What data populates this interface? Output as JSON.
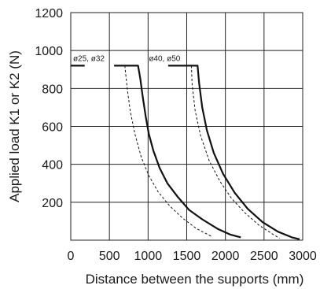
{
  "chart_data": {
    "type": "line",
    "xlabel": "Distance between the supports (mm)",
    "ylabel": "Applied load K1 or K2  (N)",
    "xlim": [
      0,
      3000
    ],
    "ylim": [
      0,
      1200
    ],
    "x_ticks": [
      0,
      500,
      1000,
      1500,
      2000,
      2500,
      3000
    ],
    "y_ticks": [
      200,
      400,
      600,
      800,
      1000,
      1200
    ],
    "x_tick_labels": [
      "0",
      "500",
      "1000",
      "1500",
      "2000",
      "2500",
      "3000"
    ],
    "y_tick_labels": [
      "200",
      "400",
      "600",
      "800",
      "1000",
      "1200"
    ],
    "grid": true,
    "annotations": [
      {
        "text": "ø25, ø32",
        "x": 30,
        "y": 945
      },
      {
        "text": "ø40, ø50",
        "x": 1010,
        "y": 945
      }
    ],
    "series": [
      {
        "style": "solid",
        "width": 2.2,
        "points": [
          [
            0,
            920
          ],
          [
            180,
            920
          ]
        ]
      },
      {
        "style": "solid",
        "width": 2.2,
        "points": [
          [
            560,
            920
          ],
          [
            870,
            920
          ],
          [
            900,
            850
          ],
          [
            930,
            760
          ],
          [
            970,
            650
          ],
          [
            1010,
            560
          ],
          [
            1070,
            470
          ],
          [
            1150,
            380
          ],
          [
            1250,
            300
          ],
          [
            1380,
            230
          ],
          [
            1530,
            160
          ],
          [
            1700,
            110
          ],
          [
            1900,
            60
          ],
          [
            2060,
            30
          ],
          [
            2200,
            15
          ]
        ]
      },
      {
        "style": "dashed",
        "width": 1,
        "points": [
          [
            700,
            920
          ],
          [
            730,
            800
          ],
          [
            770,
            680
          ],
          [
            830,
            560
          ],
          [
            910,
            440
          ],
          [
            1010,
            340
          ],
          [
            1130,
            255
          ],
          [
            1280,
            180
          ],
          [
            1450,
            115
          ],
          [
            1630,
            60
          ],
          [
            1820,
            20
          ]
        ]
      },
      {
        "style": "solid",
        "width": 2.2,
        "points": [
          [
            1260,
            920
          ],
          [
            1640,
            920
          ],
          [
            1660,
            830
          ],
          [
            1700,
            700
          ],
          [
            1760,
            580
          ],
          [
            1850,
            460
          ],
          [
            1970,
            350
          ],
          [
            2120,
            250
          ],
          [
            2290,
            165
          ],
          [
            2480,
            95
          ],
          [
            2680,
            45
          ],
          [
            2860,
            15
          ],
          [
            2960,
            5
          ]
        ]
      },
      {
        "style": "dashed",
        "width": 1,
        "points": [
          [
            1560,
            920
          ],
          [
            1570,
            820
          ],
          [
            1610,
            680
          ],
          [
            1680,
            550
          ],
          [
            1790,
            420
          ],
          [
            1930,
            310
          ],
          [
            2080,
            220
          ],
          [
            2250,
            145
          ],
          [
            2430,
            80
          ],
          [
            2620,
            30
          ],
          [
            2700,
            10
          ]
        ]
      }
    ]
  }
}
